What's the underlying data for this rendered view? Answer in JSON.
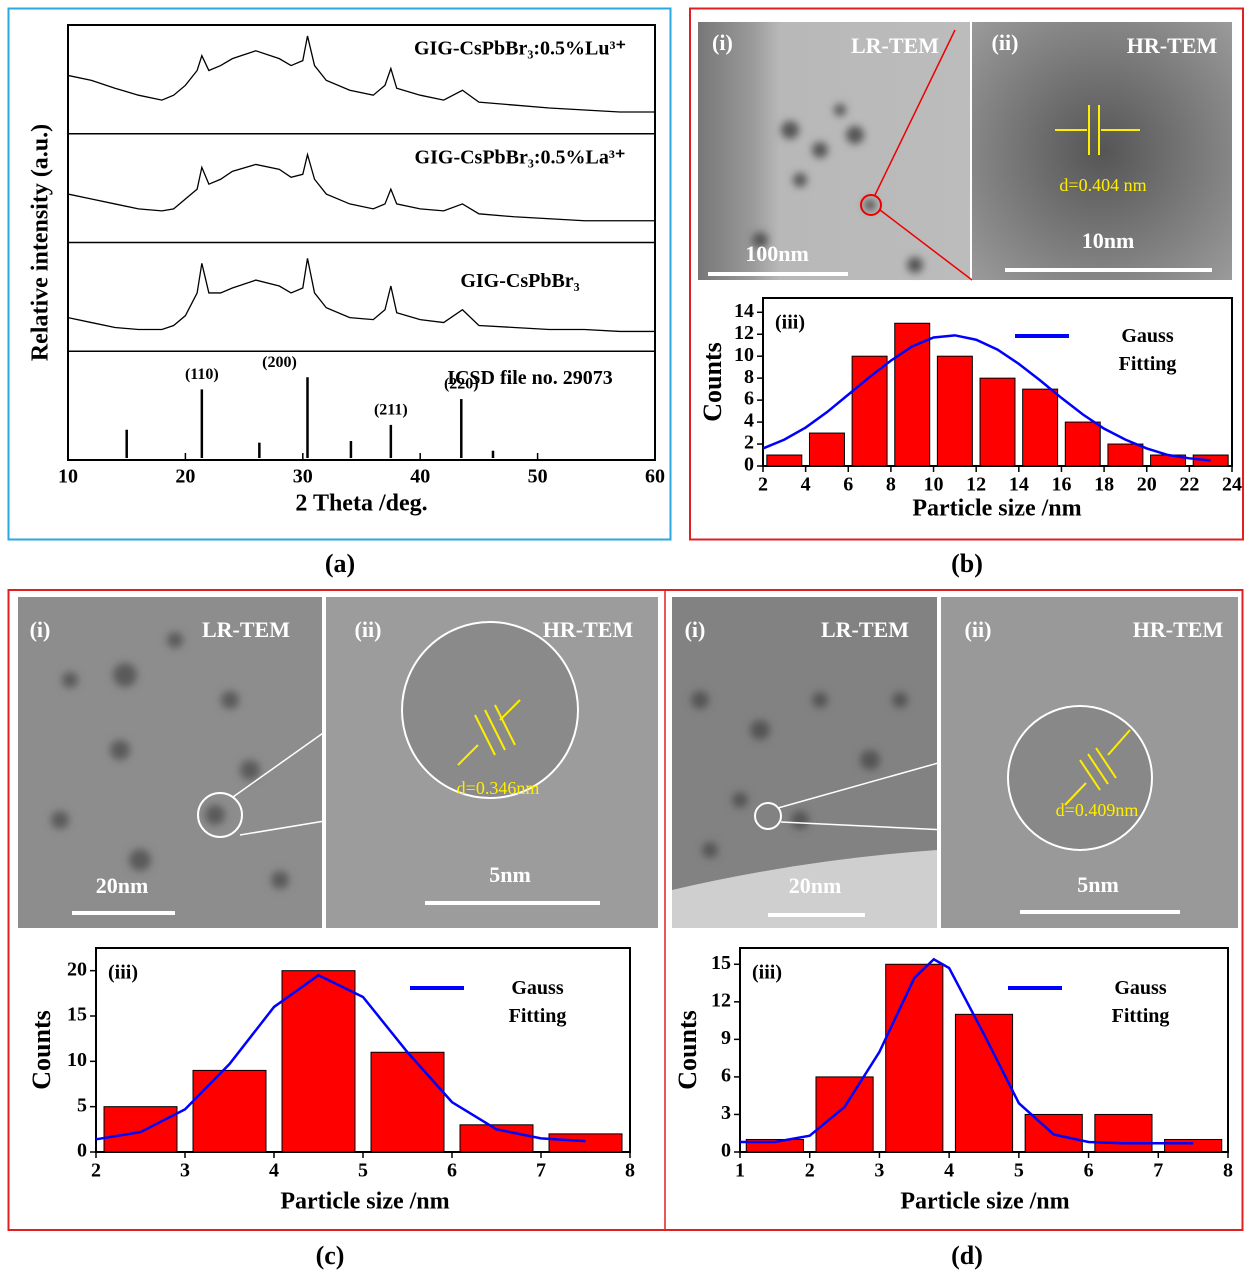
{
  "panel_labels": [
    "(a)",
    "(b)",
    "(c)",
    "(d)"
  ],
  "tem_images": [
    {
      "left_label": "(i)",
      "left_title": "LR-TEM",
      "left_scale": "100nm",
      "right_label": "(ii)",
      "right_title": "HR-TEM",
      "d_spacing": "d=0.404 nm",
      "right_scale": "10nm"
    },
    {
      "left_label": "(i)",
      "left_title": "LR-TEM",
      "left_scale": "20nm",
      "right_label": "(ii)",
      "right_title": "HR-TEM",
      "d_spacing": "d=0.346nm",
      "right_scale": "5nm"
    },
    {
      "left_label": "(i)",
      "left_title": "LR-TEM",
      "left_scale": "20nm",
      "right_label": "(ii)",
      "right_title": "HR-TEM",
      "d_spacing": "d=0.409nm",
      "right_scale": "5nm"
    }
  ],
  "chart_data": [
    {
      "type": "line",
      "x_label": "2 Theta /deg.",
      "y_label": "Relative intensity (a.u.)",
      "xlim": [
        10,
        60
      ],
      "xticks": [
        10,
        20,
        30,
        40,
        50,
        60
      ],
      "ylim": [
        0,
        1
      ],
      "x": [
        10,
        12,
        14,
        16,
        18,
        19,
        20,
        21,
        21.4,
        22,
        23,
        24,
        26,
        28,
        29,
        30,
        30.4,
        31,
        32,
        34,
        36,
        37,
        37.5,
        38,
        40,
        42,
        43.6,
        45,
        48,
        51,
        54,
        57,
        60
      ],
      "series": [
        {
          "name": "GIG-CsPbBr₃:0.5%Lu³⁺",
          "color": "#000000",
          "values": [
            0.55,
            0.5,
            0.42,
            0.35,
            0.3,
            0.35,
            0.45,
            0.6,
            0.75,
            0.6,
            0.65,
            0.72,
            0.8,
            0.72,
            0.65,
            0.7,
            0.95,
            0.65,
            0.5,
            0.4,
            0.35,
            0.45,
            0.62,
            0.42,
            0.35,
            0.3,
            0.4,
            0.28,
            0.25,
            0.22,
            0.2,
            0.18,
            0.18
          ]
        },
        {
          "name": "GIG-CsPbBr₃:0.5%La³⁺",
          "color": "#000000",
          "values": [
            0.45,
            0.4,
            0.35,
            0.3,
            0.28,
            0.3,
            0.4,
            0.5,
            0.72,
            0.55,
            0.6,
            0.68,
            0.75,
            0.7,
            0.62,
            0.65,
            0.85,
            0.6,
            0.45,
            0.35,
            0.3,
            0.35,
            0.5,
            0.35,
            0.3,
            0.28,
            0.35,
            0.25,
            0.22,
            0.2,
            0.18,
            0.18,
            0.18
          ]
        },
        {
          "name": "GIG-CsPbBr₃",
          "color": "#000000",
          "values": [
            0.3,
            0.25,
            0.2,
            0.18,
            0.18,
            0.22,
            0.32,
            0.55,
            0.85,
            0.55,
            0.55,
            0.6,
            0.68,
            0.62,
            0.55,
            0.6,
            0.9,
            0.55,
            0.4,
            0.3,
            0.28,
            0.38,
            0.62,
            0.35,
            0.28,
            0.25,
            0.38,
            0.22,
            0.2,
            0.18,
            0.18,
            0.16,
            0.16
          ]
        }
      ],
      "reference": {
        "name": "ICSD file no. 29073",
        "color": "#000000",
        "x": [
          15,
          21.4,
          26.3,
          30.4,
          34.1,
          37.5,
          43.5,
          46.2
        ],
        "values": [
          0.35,
          0.85,
          0.19,
          1,
          0.21,
          0.41,
          0.73,
          0.09
        ],
        "labels": [
          null,
          "(110)",
          null,
          "(200)",
          null,
          "(211)",
          "(220)",
          null
        ]
      }
    },
    {
      "type": "histogram",
      "inset_label": "(iii)",
      "x_label": "Particle size /nm",
      "y_label": "Counts",
      "xlim": [
        2,
        24
      ],
      "xticks": [
        2,
        4,
        6,
        8,
        10,
        12,
        14,
        16,
        18,
        20,
        22,
        24
      ],
      "ylim": [
        0,
        15.3
      ],
      "yticks": [
        0,
        2,
        4,
        6,
        8,
        10,
        12,
        14
      ],
      "bins": [
        2,
        4,
        6,
        8,
        10,
        12,
        14,
        16,
        18,
        20,
        22,
        24
      ],
      "values": [
        1,
        3,
        10,
        13,
        10,
        8,
        7,
        4,
        2,
        1,
        1
      ],
      "color": "#ff0000",
      "fit": {
        "name": "Gauss Fitting",
        "color": "#0000ff",
        "x": [
          2,
          3,
          4,
          5,
          6,
          7,
          8,
          9,
          10,
          11,
          12,
          13,
          14,
          15,
          16,
          17,
          18,
          19,
          20,
          21,
          22,
          23
        ],
        "values": [
          1.6,
          2.4,
          3.5,
          4.9,
          6.5,
          8.1,
          9.6,
          10.9,
          11.7,
          11.9,
          11.5,
          10.6,
          9.3,
          7.8,
          6.2,
          4.7,
          3.4,
          2.4,
          1.6,
          1.0,
          0.7,
          0.5
        ]
      }
    },
    {
      "type": "histogram",
      "inset_label": "(iii)",
      "x_label": "Particle size /nm",
      "y_label": "Counts",
      "xlim": [
        2,
        8
      ],
      "xticks": [
        2,
        3,
        4,
        5,
        6,
        7,
        8
      ],
      "ylim": [
        0,
        22.5
      ],
      "yticks": [
        0,
        5,
        10,
        15,
        20
      ],
      "bins": [
        2,
        3,
        4,
        5,
        6,
        7,
        8
      ],
      "values": [
        5,
        9,
        20,
        11,
        3,
        2
      ],
      "color": "#ff0000",
      "fit": {
        "name": "Gauss Fitting",
        "color": "#0000ff",
        "x": [
          2,
          2.5,
          3,
          3.5,
          4,
          4.5,
          5,
          5.5,
          6,
          6.5,
          7,
          7.5
        ],
        "values": [
          1.4,
          2.2,
          4.7,
          9.7,
          16.0,
          19.5,
          17.1,
          11.0,
          5.5,
          2.5,
          1.5,
          1.2
        ]
      }
    },
    {
      "type": "histogram",
      "inset_label": "(iii)",
      "x_label": "Particle size /nm",
      "y_label": "Counts",
      "xlim": [
        1,
        8
      ],
      "xticks": [
        1,
        2,
        3,
        4,
        5,
        6,
        7,
        8
      ],
      "ylim": [
        0,
        16.3
      ],
      "yticks": [
        0,
        3,
        6,
        9,
        12,
        15
      ],
      "bins": [
        1,
        2,
        3,
        4,
        5,
        6,
        7,
        8
      ],
      "values": [
        1,
        6,
        15,
        11,
        3,
        3,
        1
      ],
      "color": "#ff0000",
      "fit": {
        "name": "Gauss Fitting",
        "color": "#0000ff",
        "x": [
          1,
          1.5,
          2,
          2.5,
          3,
          3.5,
          3.78,
          4,
          4.5,
          5,
          5.5,
          6,
          6.5,
          7,
          7.5
        ],
        "values": [
          0.8,
          0.8,
          1.3,
          3.6,
          8.0,
          13.9,
          15.4,
          14.7,
          9.4,
          3.9,
          1.4,
          0.8,
          0.7,
          0.7,
          0.7
        ]
      }
    }
  ]
}
